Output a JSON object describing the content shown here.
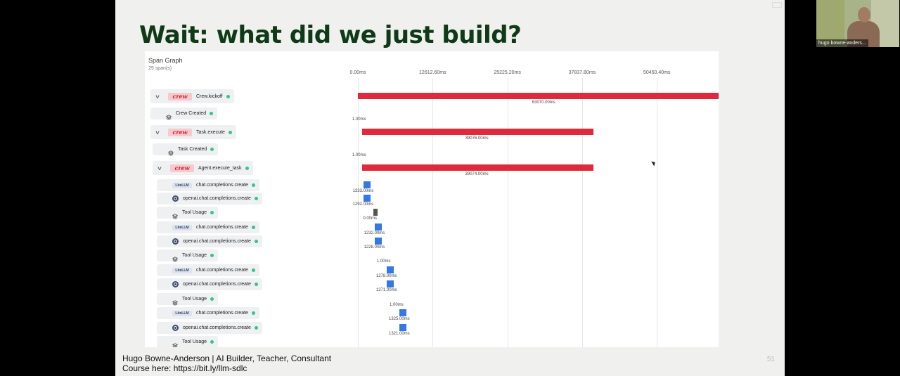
{
  "slide": {
    "title": "Wait: what did we just build?",
    "footer_line1": "Hugo Bowne-Anderson | AI Builder, Teacher, Consultant",
    "footer_line2": "Course here: https://bit.ly/llm-sdlc",
    "page_number": "51"
  },
  "span_graph": {
    "title": "Span Graph",
    "span_count": "29 span(s)",
    "ticks": [
      "0.00ms",
      "12612.60ms",
      "25225.20ms",
      "37837.80ms",
      "50450.40ms"
    ],
    "rows": [
      {
        "label": "Crew.kickoff",
        "icon": "crew-logo",
        "logo_text": "crew",
        "kind": "parent",
        "status_color": "#33c58a",
        "start_ms": 0,
        "duration_ms": 63070,
        "duration_label": "63070.00ms",
        "start_label": ""
      },
      {
        "label": "Crew Created",
        "icon": "layers-icon",
        "kind": "event",
        "status_color": "#33c58a",
        "start_ms": null,
        "duration_ms": null,
        "duration_label": "",
        "start_label": "1.00ms"
      },
      {
        "label": "Task.execute",
        "icon": "crew-logo",
        "logo_text": "crew",
        "kind": "parent",
        "status_color": "#33c58a",
        "start_ms": 700,
        "duration_ms": 39076,
        "duration_label": "39076.00ms",
        "start_label": ""
      },
      {
        "label": "Task Created",
        "icon": "layers-icon",
        "kind": "event",
        "status_color": "#33c58a",
        "start_ms": null,
        "duration_ms": null,
        "duration_label": "",
        "start_label": "1.00ms"
      },
      {
        "label": "Agent.execute_task",
        "icon": "crew-logo",
        "logo_text": "crew",
        "kind": "parent",
        "status_color": "#33c58a",
        "start_ms": 700,
        "duration_ms": 39074,
        "duration_label": "39074.00ms",
        "start_label": ""
      },
      {
        "label": "chat.completions.create",
        "icon": "litellm-logo",
        "logo_text": "LiteLLM",
        "kind": "llm",
        "status_color": "#33c58a",
        "start_ms": 900,
        "duration_ms": 1333,
        "duration_label": "1333.00ms",
        "start_label": ""
      },
      {
        "label": "openai.chat.completions.create",
        "icon": "openai-icon",
        "kind": "llm",
        "status_color": "#33c58a",
        "start_ms": 900,
        "duration_ms": 1292,
        "duration_label": "1292.00ms",
        "start_label": ""
      },
      {
        "label": "Tool Usage",
        "icon": "layers-icon",
        "kind": "tool",
        "status_color": "#33c58a",
        "start_ms": 2650,
        "duration_ms": 0,
        "duration_label": "0.00ms",
        "start_label": ""
      },
      {
        "label": "chat.completions.create",
        "icon": "litellm-logo",
        "logo_text": "LiteLLM",
        "kind": "llm",
        "status_color": "#33c58a",
        "start_ms": 2800,
        "duration_ms": 1232,
        "duration_label": "1232.00ms",
        "start_label": ""
      },
      {
        "label": "openai.chat.completions.create",
        "icon": "openai-icon",
        "kind": "llm",
        "status_color": "#33c58a",
        "start_ms": 2800,
        "duration_ms": 1228,
        "duration_label": "1228.00ms",
        "start_label": ""
      },
      {
        "label": "Tool Usage",
        "icon": "layers-icon",
        "kind": "tool",
        "status_color": "#33c58a",
        "start_ms": null,
        "duration_ms": null,
        "duration_label": "",
        "start_label": "1.00ms"
      },
      {
        "label": "chat.completions.create",
        "icon": "litellm-logo",
        "logo_text": "LiteLLM",
        "kind": "llm",
        "status_color": "#33c58a",
        "start_ms": 4850,
        "duration_ms": 1278,
        "duration_label": "1278.00ms",
        "start_label": ""
      },
      {
        "label": "openai.chat.completions.create",
        "icon": "openai-icon",
        "kind": "llm",
        "status_color": "#33c58a",
        "start_ms": 4850,
        "duration_ms": 1271,
        "duration_label": "1271.00ms",
        "start_label": ""
      },
      {
        "label": "Tool Usage",
        "icon": "layers-icon",
        "kind": "tool",
        "status_color": "#33c58a",
        "start_ms": null,
        "duration_ms": null,
        "duration_label": "",
        "start_label": "1.00ms"
      },
      {
        "label": "chat.completions.create",
        "icon": "litellm-logo",
        "logo_text": "LiteLLM",
        "kind": "llm",
        "status_color": "#33c58a",
        "start_ms": 7000,
        "duration_ms": 1325,
        "duration_label": "1325.00ms",
        "start_label": ""
      },
      {
        "label": "openai.chat.completions.create",
        "icon": "openai-icon",
        "kind": "llm",
        "status_color": "#33c58a",
        "start_ms": 7000,
        "duration_ms": 1321,
        "duration_label": "1321.00ms",
        "start_label": ""
      },
      {
        "label": "Tool Usage",
        "icon": "layers-icon",
        "kind": "tool",
        "status_color": "#33c58a",
        "start_ms": null,
        "duration_ms": null,
        "duration_label": "",
        "start_label": ""
      }
    ]
  },
  "colors": {
    "title_green": "#0f3a17",
    "long_span_bar": "#de2a3d",
    "llm_span": "#3478e5",
    "tool_span": "#555555"
  },
  "webcam": {
    "participant_name": "hugo bowne-anders..."
  }
}
